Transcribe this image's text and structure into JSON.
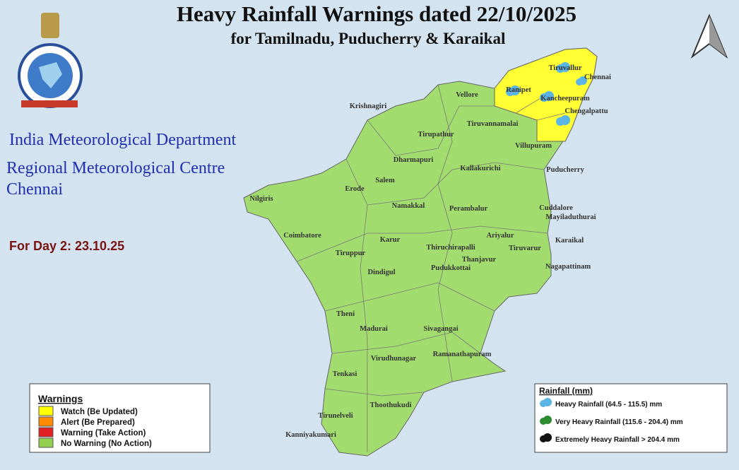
{
  "header": {
    "title": "Heavy Rainfall Warnings dated 22/10/2025",
    "subtitle": "for Tamilnadu, Puducherry & Karaikal"
  },
  "organization": [
    "India Meteorological Department",
    "Regional Meteorological Centre",
    "Chennai"
  ],
  "forecast_day": "For Day 2: 23.10.25",
  "districts": [
    "Krishnagiri",
    "Vellore",
    "Tiruvallur",
    "Chennai",
    "Ranipet",
    "Kancheepuram",
    "Chengalpattu",
    "Tirupathur",
    "Tiruvannamalai",
    "Villupuram",
    "Dharmapuri",
    "Kallakurichi",
    "Puducherry",
    "Salem",
    "Erode",
    "Nilgiris",
    "Namakkal",
    "Perambalur",
    "Cuddalore",
    "Mayiladuthurai",
    "Coimbatore",
    "Karur",
    "Ariyalur",
    "Karaikal",
    "Tiruppur",
    "Thiruchirapalli",
    "Tiruvarur",
    "Thanjavur",
    "Dindigul",
    "Pudukkottai",
    "Nagapattinam",
    "Theni",
    "Madurai",
    "Sivagangai",
    "Virudhunagar",
    "Ramanathapuram",
    "Tenkasi",
    "Thoothukudi",
    "Tirunelveli",
    "Kanniyakumari"
  ],
  "warnings_legend": {
    "title": "Warnings",
    "items": [
      {
        "label": "Watch (Be Updated)",
        "color": "#ffff00"
      },
      {
        "label": "Alert (Be Prepared)",
        "color": "#ff8c00"
      },
      {
        "label": "Warning (Take Action)",
        "color": "#e02020"
      },
      {
        "label": "No Warning (No Action)",
        "color": "#92d050"
      }
    ]
  },
  "rainfall_legend": {
    "title": "Rainfall (mm)",
    "items": [
      {
        "label": "Heavy Rainfall (64.5 - 115.5) mm",
        "color": "#5ab4e6"
      },
      {
        "label": "Very Heavy Rainfall (115.6 - 204.4) mm",
        "color": "#2e8b2e"
      },
      {
        "label": "Extremely Heavy Rainfall > 204.4 mm",
        "color": "#111111"
      }
    ]
  }
}
